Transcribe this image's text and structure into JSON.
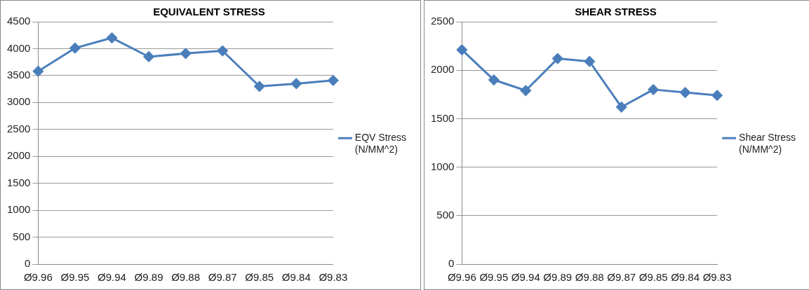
{
  "chart_data": [
    {
      "type": "line",
      "title": "EQUIVALENT STRESS",
      "categories": [
        "Ø9.96",
        "Ø9.95",
        "Ø9.94",
        "Ø9.89",
        "Ø9.88",
        "Ø9.87",
        "Ø9.85",
        "Ø9.84",
        "Ø9.83"
      ],
      "series": [
        {
          "name": "EQV Stress (N/MM^2)",
          "color": "#4a7ebb",
          "values": [
            3580,
            4010,
            4200,
            3850,
            3910,
            3960,
            3300,
            3350,
            3410
          ]
        }
      ],
      "ylim": [
        0,
        4500
      ],
      "yticks": [
        0,
        500,
        1000,
        1500,
        2000,
        2500,
        3000,
        3500,
        4000,
        4500
      ],
      "grid": "y",
      "legend": "right",
      "marker": "diamond",
      "line_style": "solid"
    },
    {
      "type": "line",
      "title": "SHEAR STRESS",
      "categories": [
        "Ø9.96",
        "Ø9.95",
        "Ø9.94",
        "Ø9.89",
        "Ø9.88",
        "Ø9.87",
        "Ø9.85",
        "Ø9.84",
        "Ø9.83"
      ],
      "series": [
        {
          "name": "Shear Stress (N/MM^2)",
          "color": "#4a7ebb",
          "values": [
            2210,
            1900,
            1790,
            2120,
            2090,
            1620,
            1800,
            1770,
            1740
          ]
        }
      ],
      "ylim": [
        0,
        2500
      ],
      "yticks": [
        0,
        500,
        1000,
        1500,
        2000,
        2500
      ],
      "grid": "y",
      "legend": "right",
      "marker": "diamond",
      "line_style": "solid"
    }
  ]
}
